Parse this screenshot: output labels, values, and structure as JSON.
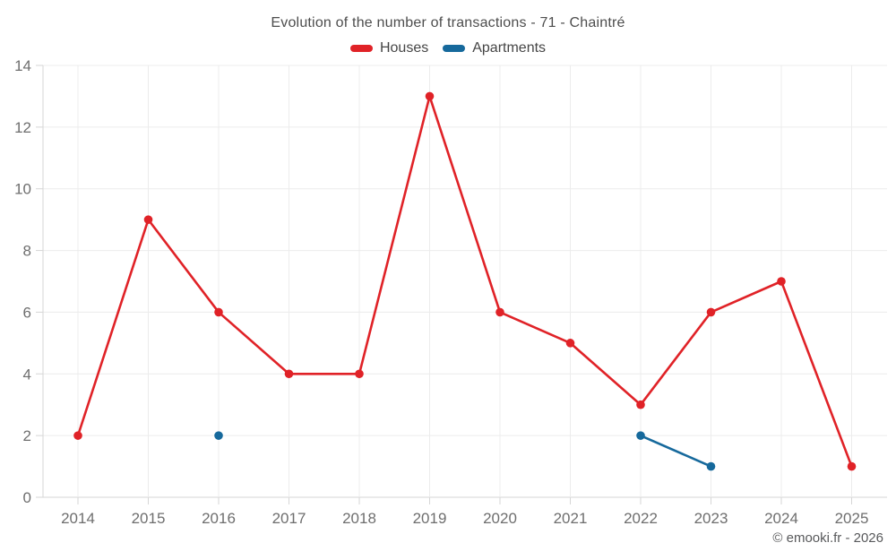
{
  "title": "Evolution of the number of transactions - 71 - Chaintré",
  "copyright": "© emooki.fr - 2026",
  "colors": {
    "houses": "#e02227",
    "apartments": "#16699c",
    "gridline": "#ececec",
    "axis": "#d6d6d6",
    "tick_text": "#6e6e6e"
  },
  "chart_data": {
    "type": "line",
    "title": "Evolution of the number of transactions - 71 - Chaintré",
    "categories": [
      "2014",
      "2015",
      "2016",
      "2017",
      "2018",
      "2019",
      "2020",
      "2021",
      "2022",
      "2023",
      "2024",
      "2025"
    ],
    "series": [
      {
        "name": "Houses",
        "color": "#e02227",
        "values": [
          2,
          9,
          6,
          4,
          4,
          13,
          6,
          5,
          3,
          6,
          7,
          1
        ]
      },
      {
        "name": "Apartments",
        "color": "#16699c",
        "values": [
          null,
          null,
          2,
          null,
          null,
          null,
          null,
          null,
          2,
          1,
          null,
          null
        ]
      }
    ],
    "xlabel": "",
    "ylabel": "",
    "ylim": [
      0,
      14
    ],
    "y_ticks": [
      0,
      2,
      4,
      6,
      8,
      10,
      12,
      14
    ],
    "grid": true,
    "legend_position": "top",
    "legend": [
      "Houses",
      "Apartments"
    ]
  }
}
